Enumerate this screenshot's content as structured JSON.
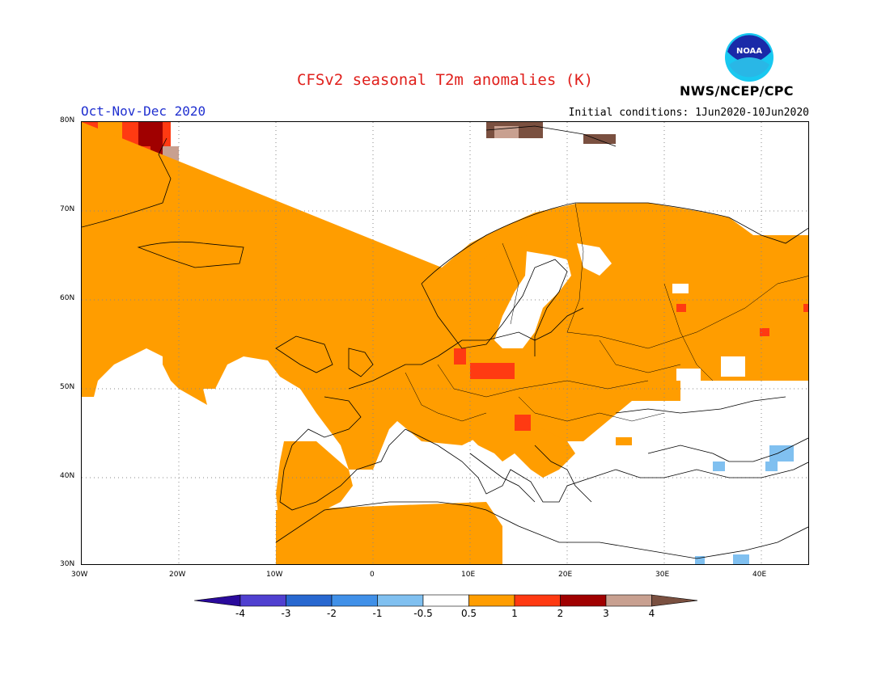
{
  "header": {
    "title": "CFSv2 seasonal T2m anomalies (K)",
    "period": "Oct-Nov-Dec 2020",
    "initial_conditions": "Initial conditions: 1Jun2020-10Jun2020",
    "agency": "NWS/NCEP/CPC",
    "logo_text": "NOAA"
  },
  "map": {
    "lat_labels": [
      "80N",
      "70N",
      "60N",
      "50N",
      "40N",
      "30N"
    ],
    "lon_labels": [
      "30W",
      "20W",
      "10W",
      "0",
      "10E",
      "20E",
      "30E",
      "40E"
    ],
    "extent": {
      "lon": [
        -30,
        45
      ],
      "lat": [
        30,
        80
      ]
    }
  },
  "legend": {
    "labels": [
      "-4",
      "-3",
      "-2",
      "-1",
      "-0.5",
      "0.5",
      "1",
      "2",
      "3",
      "4"
    ],
    "colors": [
      "#2a0a9c",
      "#5040d0",
      "#2868d0",
      "#4090e8",
      "#80c0f0",
      "#ffffff",
      "#ff9d00",
      "#ff3a12",
      "#a00000",
      "#c8a090",
      "#7a5040"
    ]
  }
}
